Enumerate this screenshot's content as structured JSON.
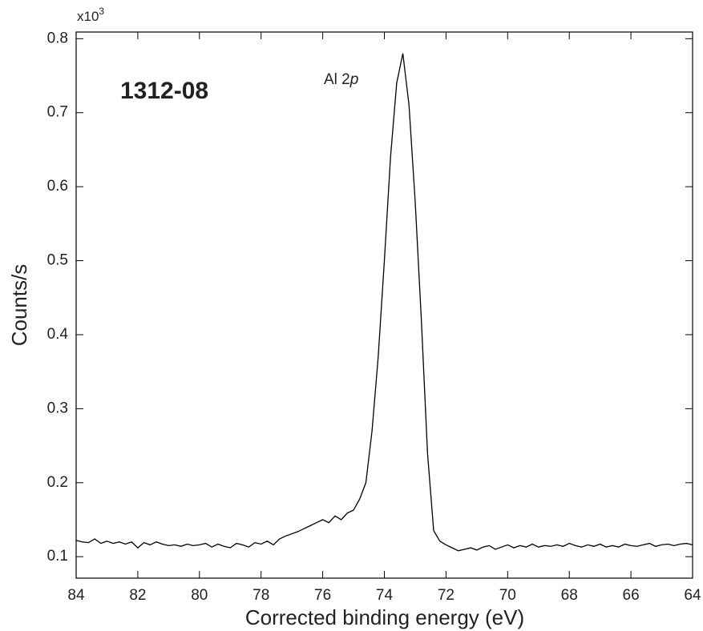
{
  "chart_data": {
    "type": "line",
    "x_label": "Corrected binding energy (eV)",
    "y_label": "Counts/s",
    "y_multiplier": {
      "base": "x10",
      "exponent": "3"
    },
    "sample_label": "1312-08",
    "peak_label": {
      "text": "Al 2",
      "italic": "p"
    },
    "xlim": [
      84,
      64
    ],
    "ylim": [
      0.071,
      0.809
    ],
    "xticks": [
      84,
      82,
      80,
      78,
      76,
      74,
      72,
      70,
      68,
      66,
      64
    ],
    "yticks": [
      0.1,
      0.2,
      0.3,
      0.4,
      0.5,
      0.6,
      0.7,
      0.8
    ],
    "grid": false,
    "x": [
      84.0,
      83.8,
      83.6,
      83.4,
      83.2,
      83.0,
      82.8,
      82.6,
      82.4,
      82.2,
      82.0,
      81.8,
      81.6,
      81.4,
      81.2,
      81.0,
      80.8,
      80.6,
      80.4,
      80.2,
      80.0,
      79.8,
      79.6,
      79.4,
      79.2,
      79.0,
      78.8,
      78.6,
      78.4,
      78.2,
      78.0,
      77.8,
      77.6,
      77.4,
      77.2,
      77.0,
      76.8,
      76.6,
      76.4,
      76.2,
      76.0,
      75.8,
      75.6,
      75.4,
      75.2,
      75.0,
      74.8,
      74.6,
      74.4,
      74.2,
      74.0,
      73.8,
      73.6,
      73.4,
      73.2,
      73.0,
      72.8,
      72.6,
      72.4,
      72.2,
      72.0,
      71.8,
      71.6,
      71.4,
      71.2,
      71.0,
      70.8,
      70.6,
      70.4,
      70.2,
      70.0,
      69.8,
      69.6,
      69.4,
      69.2,
      69.0,
      68.8,
      68.6,
      68.4,
      68.2,
      68.0,
      67.8,
      67.6,
      67.4,
      67.2,
      67.0,
      66.8,
      66.6,
      66.4,
      66.2,
      66.0,
      65.8,
      65.6,
      65.4,
      65.2,
      65.0,
      64.8,
      64.6,
      64.4,
      64.2,
      64.0
    ],
    "series": [
      {
        "color": "#000000",
        "values": [
          0.122,
          0.12,
          0.119,
          0.124,
          0.118,
          0.121,
          0.118,
          0.12,
          0.117,
          0.12,
          0.112,
          0.119,
          0.116,
          0.12,
          0.117,
          0.115,
          0.116,
          0.114,
          0.117,
          0.115,
          0.116,
          0.118,
          0.113,
          0.117,
          0.114,
          0.112,
          0.118,
          0.116,
          0.113,
          0.119,
          0.117,
          0.121,
          0.116,
          0.124,
          0.128,
          0.131,
          0.134,
          0.138,
          0.142,
          0.146,
          0.15,
          0.146,
          0.155,
          0.15,
          0.159,
          0.163,
          0.178,
          0.2,
          0.27,
          0.37,
          0.5,
          0.64,
          0.74,
          0.78,
          0.71,
          0.58,
          0.42,
          0.24,
          0.135,
          0.121,
          0.116,
          0.112,
          0.108,
          0.11,
          0.112,
          0.109,
          0.113,
          0.115,
          0.11,
          0.113,
          0.116,
          0.112,
          0.115,
          0.113,
          0.117,
          0.113,
          0.115,
          0.114,
          0.116,
          0.114,
          0.118,
          0.115,
          0.113,
          0.116,
          0.114,
          0.117,
          0.113,
          0.115,
          0.113,
          0.117,
          0.115,
          0.114,
          0.116,
          0.118,
          0.114,
          0.116,
          0.117,
          0.115,
          0.117,
          0.118,
          0.116
        ]
      }
    ]
  }
}
